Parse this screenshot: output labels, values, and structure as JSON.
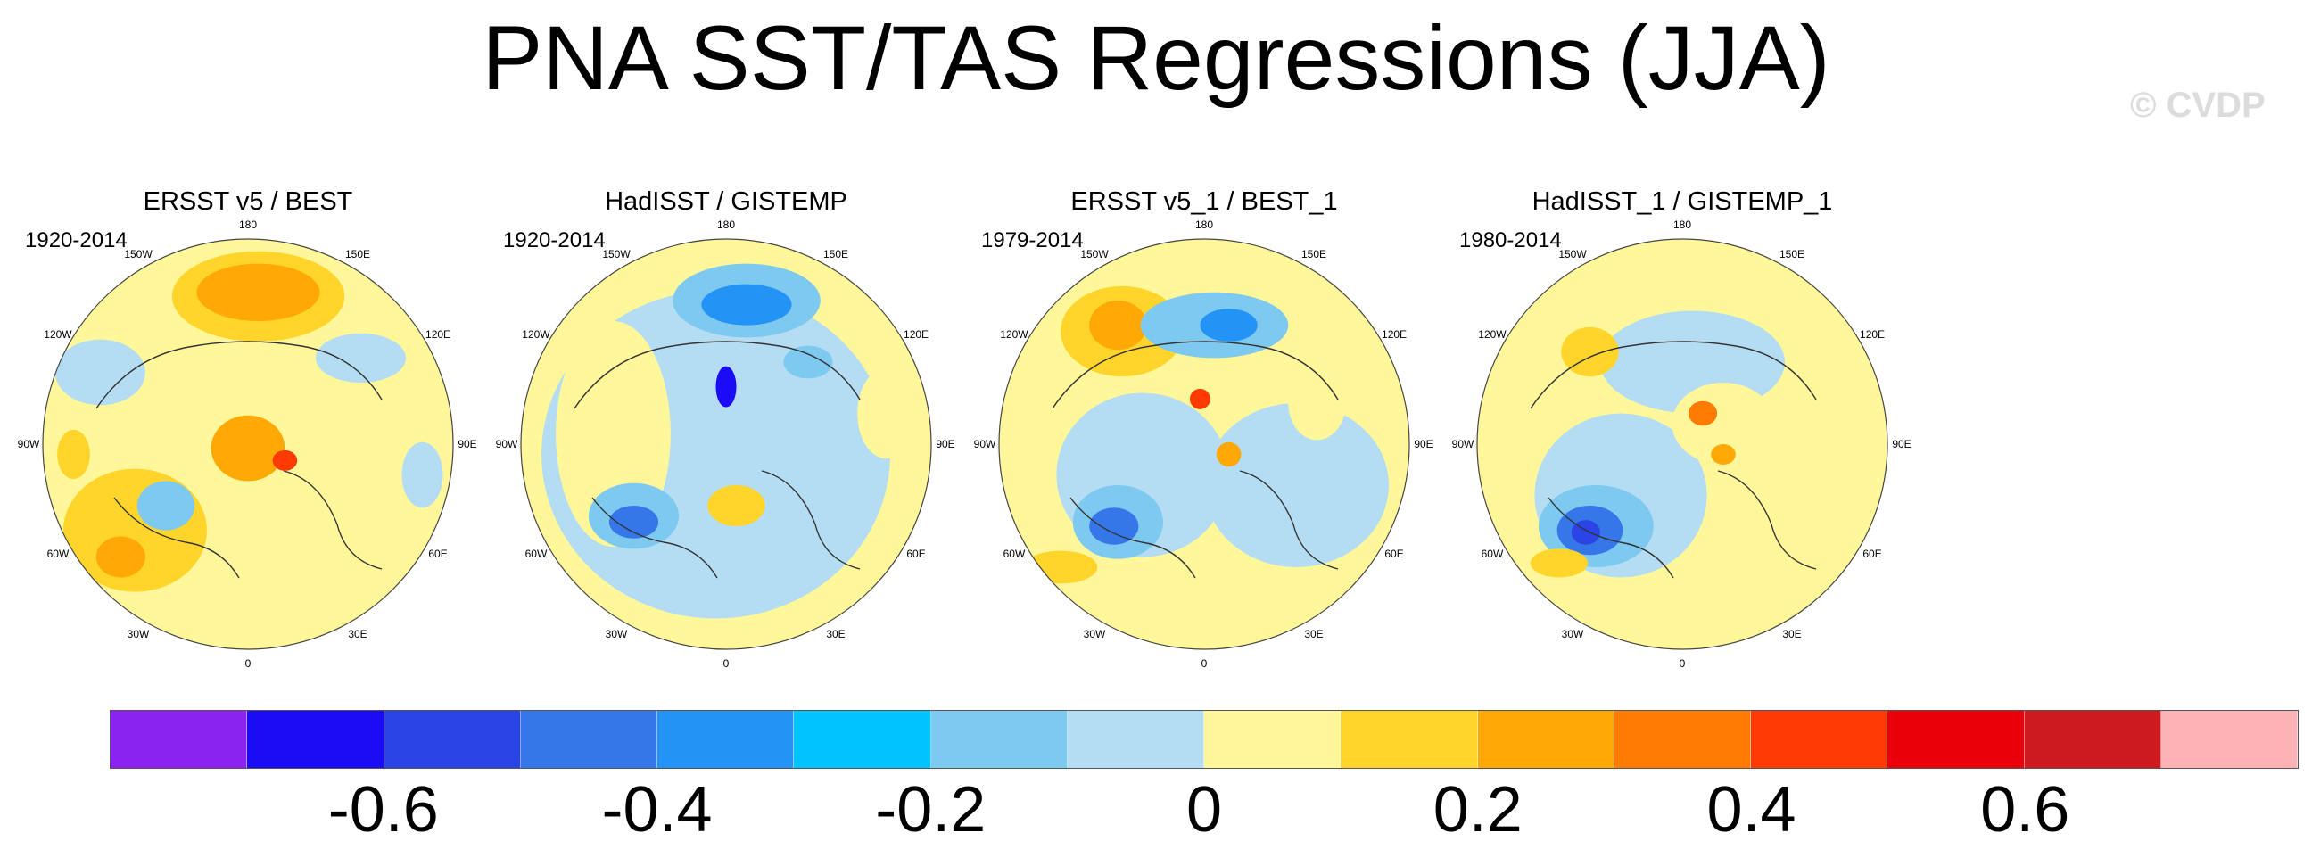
{
  "title": "PNA SST/TAS Regressions (JJA)",
  "copyright": "© CVDP",
  "longitude_labels": [
    "180",
    "150E",
    "120E",
    "90E",
    "60E",
    "30E",
    "0",
    "30W",
    "60W",
    "90W",
    "120W",
    "150W"
  ],
  "panels": [
    {
      "title": "ERSST v5 / BEST",
      "years": "1920-2014"
    },
    {
      "title": "HadISST / GISTEMP",
      "years": "1920-2014"
    },
    {
      "title": "ERSST v5_1 / BEST_1",
      "years": "1979-2014"
    },
    {
      "title": "HadISST_1 / GISTEMP_1",
      "years": "1980-2014"
    }
  ],
  "colorbar": {
    "colors": [
      "#8a22f0",
      "#1c0cf5",
      "#2b44e6",
      "#3576e8",
      "#2394f5",
      "#00c3ff",
      "#7ec9f0",
      "#b4ddf3",
      "#fff79a",
      "#ffd52c",
      "#ffa806",
      "#ff7b03",
      "#ff3b05",
      "#e90009",
      "#cd1a1e",
      "#fdb3b5"
    ],
    "labels": [
      "-0.6",
      "-0.4",
      "-0.2",
      "0",
      "0.2",
      "0.4",
      "0.6"
    ]
  }
}
